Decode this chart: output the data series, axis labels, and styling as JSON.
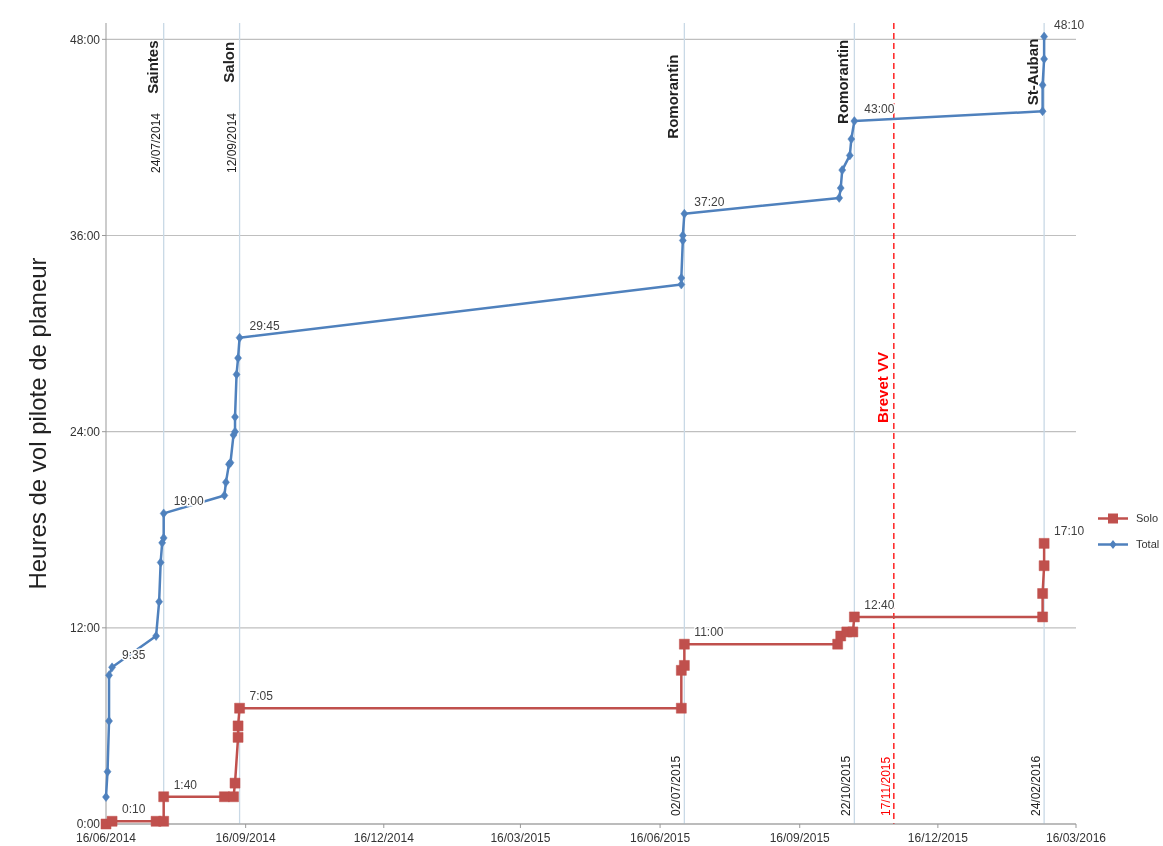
{
  "chart_data": {
    "type": "line",
    "ylabel": "Heures de vol pilote de planeur",
    "xlim": [
      "2014-06-16",
      "2016-03-16"
    ],
    "xticks": [
      {
        "value": "2014-06-16",
        "label": "16/06/2014"
      },
      {
        "value": "2014-09-16",
        "label": "16/09/2014"
      },
      {
        "value": "2014-12-16",
        "label": "16/12/2014"
      },
      {
        "value": "2015-03-16",
        "label": "16/03/2015"
      },
      {
        "value": "2015-06-16",
        "label": "16/06/2015"
      },
      {
        "value": "2015-09-16",
        "label": "16/09/2015"
      },
      {
        "value": "2015-12-16",
        "label": "16/12/2015"
      },
      {
        "value": "2016-03-16",
        "label": "16/03/2016"
      }
    ],
    "ylim": [
      0,
      49
    ],
    "yticks": [
      {
        "value": 0,
        "label": "0:00"
      },
      {
        "value": 12,
        "label": "12:00"
      },
      {
        "value": 24,
        "label": "24:00"
      },
      {
        "value": 36,
        "label": "36:00"
      },
      {
        "value": 48,
        "label": "48:00"
      }
    ],
    "grid": "y",
    "legend": "right",
    "line_style": "solid",
    "series": [
      {
        "name": "Solo",
        "color": "#c0504d",
        "marker": "square",
        "x": [
          "2014-06-16",
          "2014-06-20",
          "2014-07-19",
          "2014-07-24",
          "2014-07-24",
          "2014-09-02",
          "2014-09-08",
          "2014-09-09",
          "2014-09-11",
          "2014-09-11",
          "2014-09-12",
          "2015-06-30",
          "2015-06-30",
          "2015-07-02",
          "2015-07-02",
          "2015-10-11",
          "2015-10-13",
          "2015-10-17",
          "2015-10-21",
          "2015-10-22",
          "2016-02-23",
          "2016-02-23",
          "2016-02-24",
          "2016-02-24"
        ],
        "values": [
          0,
          0.167,
          0.167,
          0.167,
          1.667,
          1.667,
          1.667,
          2.5,
          5.3,
          6.0,
          7.083,
          7.083,
          9.4,
          9.7,
          11.0,
          11.0,
          11.5,
          11.75,
          11.75,
          12.667,
          12.667,
          14.1,
          15.8,
          17.167
        ],
        "value_labels": [
          null,
          "0:10",
          null,
          null,
          "1:40",
          null,
          null,
          null,
          null,
          null,
          "7:05",
          null,
          null,
          null,
          "11:00",
          null,
          null,
          null,
          null,
          "12:40",
          null,
          null,
          null,
          "17:10"
        ]
      },
      {
        "name": "Total",
        "color": "#4f81bd",
        "marker": "diamond",
        "x": [
          "2014-06-16",
          "2014-06-17",
          "2014-06-18",
          "2014-06-18",
          "2014-06-20",
          "2014-07-19",
          "2014-07-21",
          "2014-07-22",
          "2014-07-23",
          "2014-07-24",
          "2014-07-24",
          "2014-09-02",
          "2014-09-03",
          "2014-09-05",
          "2014-09-06",
          "2014-09-08",
          "2014-09-09",
          "2014-09-09",
          "2014-09-10",
          "2014-09-11",
          "2014-09-12",
          "2015-06-30",
          "2015-06-30",
          "2015-07-01",
          "2015-07-01",
          "2015-07-02",
          "2015-10-12",
          "2015-10-13",
          "2015-10-14",
          "2015-10-19",
          "2015-10-20",
          "2015-10-22",
          "2016-02-23",
          "2016-02-23",
          "2016-02-24",
          "2016-02-24"
        ],
        "values": [
          1.65,
          3.2,
          6.3,
          9.1,
          9.583,
          11.5,
          13.6,
          16.0,
          17.2,
          17.5,
          19.0,
          20.1,
          20.9,
          22.0,
          22.1,
          23.8,
          24.0,
          24.9,
          27.5,
          28.5,
          29.75,
          33.0,
          33.4,
          35.7,
          36.0,
          37.333,
          38.3,
          38.9,
          40.0,
          40.9,
          41.9,
          43.0,
          43.6,
          45.2,
          46.8,
          48.167
        ],
        "value_labels": [
          null,
          null,
          null,
          null,
          "9:35",
          null,
          null,
          null,
          null,
          null,
          "19:00",
          null,
          null,
          null,
          null,
          null,
          null,
          null,
          null,
          null,
          "29:45",
          null,
          null,
          null,
          null,
          "37:20",
          null,
          null,
          null,
          null,
          null,
          "43:00",
          null,
          null,
          null,
          "48:10"
        ]
      }
    ],
    "ref_lines": [
      {
        "axis": "x",
        "value": "2014-07-24",
        "label": "24/07/2014",
        "color": "#c9d9e6"
      },
      {
        "axis": "x",
        "value": "2014-09-12",
        "label": "12/09/2014",
        "color": "#c9d9e6"
      },
      {
        "axis": "x",
        "value": "2015-07-02",
        "label": "02/07/2015",
        "color": "#c9d9e6"
      },
      {
        "axis": "x",
        "value": "2015-10-22",
        "label": "22/10/2015",
        "color": "#c9d9e6"
      },
      {
        "axis": "x",
        "value": "2015-11-17",
        "label": "17/11/2015",
        "color": "#ff0000",
        "line_style": "dashed"
      },
      {
        "axis": "x",
        "value": "2016-02-24",
        "label": "24/02/2016",
        "color": "#c9d9e6"
      }
    ],
    "annotations": [
      {
        "text": "Saintes",
        "x": "2014-07-24",
        "y": 46.3
      },
      {
        "text": "Salon",
        "x": "2014-09-12",
        "y": 46.6
      },
      {
        "text": "Romorantin",
        "x": "2015-07-02",
        "y": 44.5
      },
      {
        "text": "Romorantin",
        "x": "2015-10-22",
        "y": 45.4
      },
      {
        "text": "Brevet VV",
        "x": "2015-11-17",
        "y": 26.7
      },
      {
        "text": "St-Auban",
        "x": "2016-02-24",
        "y": 46
      }
    ]
  }
}
